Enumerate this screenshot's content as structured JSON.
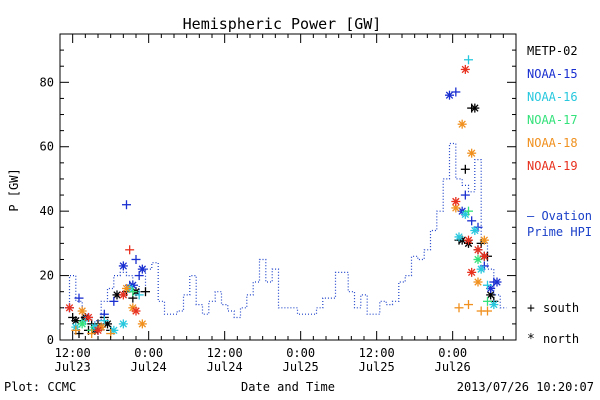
{
  "chart_data": {
    "type": "line",
    "title": "Hemispheric Power [GW]",
    "xlabel": "Date and Time",
    "ylabel": "P [GW]",
    "footer_left": "Plot: CCMC",
    "footer_right": "2013/07/26 10:20:07",
    "x_unit": "hours since 2013-07-23 12:00 UT",
    "x_range": [
      0,
      68
    ],
    "ylim": [
      0,
      95
    ],
    "y_ticks": [
      0,
      20,
      40,
      60,
      80
    ],
    "y_minor_step": 5,
    "x_ticks": [
      {
        "x": 0,
        "time": "12:00",
        "date": "Jul23"
      },
      {
        "x": 12,
        "time": "0:00",
        "date": "Jul24"
      },
      {
        "x": 24,
        "time": "12:00",
        "date": "Jul24"
      },
      {
        "x": 36,
        "time": "0:00",
        "date": "Jul25"
      },
      {
        "x": 48,
        "time": "12:00",
        "date": "Jul25"
      },
      {
        "x": 60,
        "time": "0:00",
        "date": "Jul26"
      }
    ],
    "x_minor_step": 2,
    "grid": false,
    "legend": [
      {
        "name": "METP-02",
        "color": "#000000"
      },
      {
        "name": "NOAA-15",
        "color": "#1a2fd0"
      },
      {
        "name": "NOAA-16",
        "color": "#27c8de"
      },
      {
        "name": "NOAA-17",
        "color": "#33e27a"
      },
      {
        "name": "NOAA-18",
        "color": "#f0901e"
      },
      {
        "name": "NOAA-19",
        "color": "#e8301e"
      }
    ],
    "legend_placement": "right",
    "ovation_label": [
      "— Ovation",
      "Prime HPI"
    ],
    "ovation_color": "#1a3fc8",
    "marker_key": [
      {
        "symbol": "+",
        "label": "south"
      },
      {
        "symbol": "*",
        "label": "north"
      }
    ],
    "ovation": [
      [
        -1.5,
        10
      ],
      [
        -0.5,
        20
      ],
      [
        0.5,
        12
      ],
      [
        1.5,
        8
      ],
      [
        2.5,
        4
      ],
      [
        3.5,
        6
      ],
      [
        4.5,
        12
      ],
      [
        5.5,
        16
      ],
      [
        6.5,
        20
      ],
      [
        7.5,
        21
      ],
      [
        8.5,
        20
      ],
      [
        9.5,
        17
      ],
      [
        10.5,
        15
      ],
      [
        11.5,
        22
      ],
      [
        12.5,
        24
      ],
      [
        13.5,
        12
      ],
      [
        14.5,
        8
      ],
      [
        16.5,
        9
      ],
      [
        17.5,
        14
      ],
      [
        18.5,
        20
      ],
      [
        19.5,
        11
      ],
      [
        20.5,
        8
      ],
      [
        21.5,
        12
      ],
      [
        22.5,
        15
      ],
      [
        23.5,
        11
      ],
      [
        24.5,
        9
      ],
      [
        25.5,
        7
      ],
      [
        26.5,
        10
      ],
      [
        27.5,
        14
      ],
      [
        28.5,
        18
      ],
      [
        29.5,
        25
      ],
      [
        30.5,
        18
      ],
      [
        31.5,
        22
      ],
      [
        32.5,
        10
      ],
      [
        35.5,
        8
      ],
      [
        38.5,
        10
      ],
      [
        39.5,
        13
      ],
      [
        41.5,
        21
      ],
      [
        43.5,
        15
      ],
      [
        44.5,
        10
      ],
      [
        45.5,
        14
      ],
      [
        46.5,
        8
      ],
      [
        48.5,
        12
      ],
      [
        49.5,
        11
      ],
      [
        50.5,
        12
      ],
      [
        51.5,
        18
      ],
      [
        52.5,
        20
      ],
      [
        53.5,
        26
      ],
      [
        54.5,
        25
      ],
      [
        55.5,
        28
      ],
      [
        56.5,
        34
      ],
      [
        57.5,
        40
      ],
      [
        58.5,
        50
      ],
      [
        59.5,
        61
      ],
      [
        60.5,
        50
      ],
      [
        61.5,
        48
      ],
      [
        62.5,
        46
      ],
      [
        63.5,
        56
      ],
      [
        64.5,
        30
      ],
      [
        65.5,
        22
      ],
      [
        66.5,
        14
      ],
      [
        67.5,
        10
      ]
    ],
    "series": [
      {
        "name": "METP-02",
        "points": [
          {
            "x": 0.0,
            "y": 7,
            "m": "+"
          },
          {
            "x": 0.5,
            "y": 6,
            "m": "*"
          },
          {
            "x": 1.0,
            "y": 2,
            "m": "+"
          },
          {
            "x": 1.5,
            "y": 6,
            "m": "+"
          },
          {
            "x": 2.0,
            "y": 7,
            "m": "*"
          },
          {
            "x": 2.5,
            "y": 3,
            "m": "+"
          },
          {
            "x": 3.0,
            "y": 5,
            "m": "+"
          },
          {
            "x": 3.5,
            "y": 3,
            "m": "*"
          },
          {
            "x": 4.0,
            "y": 5,
            "m": "+"
          },
          {
            "x": 4.5,
            "y": 4,
            "m": "*"
          },
          {
            "x": 5.0,
            "y": 7,
            "m": "+"
          },
          {
            "x": 5.5,
            "y": 5,
            "m": "*"
          },
          {
            "x": 6.0,
            "y": 3,
            "m": "+"
          },
          {
            "x": 7.0,
            "y": 14,
            "m": "*"
          },
          {
            "x": 8.5,
            "y": 15,
            "m": "+"
          },
          {
            "x": 9.5,
            "y": 13,
            "m": "+"
          },
          {
            "x": 10.0,
            "y": 15,
            "m": "*"
          },
          {
            "x": 11.5,
            "y": 15,
            "m": "+"
          },
          {
            "x": 61.0,
            "y": 31,
            "m": "+"
          },
          {
            "x": 61.5,
            "y": 31,
            "m": "*"
          },
          {
            "x": 62.0,
            "y": 53,
            "m": "+"
          },
          {
            "x": 62.5,
            "y": 30,
            "m": "*"
          },
          {
            "x": 63.0,
            "y": 72,
            "m": "+"
          },
          {
            "x": 63.5,
            "y": 72,
            "m": "*"
          },
          {
            "x": 64.0,
            "y": 28,
            "m": "+"
          },
          {
            "x": 64.5,
            "y": 30,
            "m": "+"
          },
          {
            "x": 65.0,
            "y": 26,
            "m": "*"
          },
          {
            "x": 65.5,
            "y": 26,
            "m": "+"
          },
          {
            "x": 66.0,
            "y": 14,
            "m": "*"
          },
          {
            "x": 66.5,
            "y": 12,
            "m": "+"
          }
        ]
      },
      {
        "name": "NOAA-15",
        "points": [
          {
            "x": -0.5,
            "y": 10,
            "m": "+"
          },
          {
            "x": 1.0,
            "y": 13,
            "m": "+"
          },
          {
            "x": 2.5,
            "y": 7,
            "m": "+"
          },
          {
            "x": 4.0,
            "y": 3,
            "m": "+"
          },
          {
            "x": 5.0,
            "y": 8,
            "m": "+"
          },
          {
            "x": 6.5,
            "y": 12,
            "m": "+"
          },
          {
            "x": 8.0,
            "y": 23,
            "m": "*"
          },
          {
            "x": 8.5,
            "y": 42,
            "m": "+"
          },
          {
            "x": 9.0,
            "y": 17,
            "m": "+"
          },
          {
            "x": 9.5,
            "y": 17,
            "m": "*"
          },
          {
            "x": 10.0,
            "y": 25,
            "m": "+"
          },
          {
            "x": 10.5,
            "y": 20,
            "m": "+"
          },
          {
            "x": 11.0,
            "y": 22,
            "m": "*"
          },
          {
            "x": 59.5,
            "y": 76,
            "m": "*"
          },
          {
            "x": 60.5,
            "y": 77,
            "m": "+"
          },
          {
            "x": 61.5,
            "y": 40,
            "m": "*"
          },
          {
            "x": 62.0,
            "y": 45,
            "m": "+"
          },
          {
            "x": 63.0,
            "y": 37,
            "m": "+"
          },
          {
            "x": 64.0,
            "y": 35,
            "m": "+"
          },
          {
            "x": 65.0,
            "y": 23,
            "m": "+"
          },
          {
            "x": 66.0,
            "y": 16,
            "m": "*"
          },
          {
            "x": 66.5,
            "y": 18,
            "m": "+"
          },
          {
            "x": 67.0,
            "y": 18,
            "m": "*"
          }
        ]
      },
      {
        "name": "NOAA-16",
        "points": [
          {
            "x": 0.5,
            "y": 4,
            "m": "*"
          },
          {
            "x": 2.0,
            "y": 6,
            "m": "+"
          },
          {
            "x": 3.5,
            "y": 4,
            "m": "*"
          },
          {
            "x": 5.0,
            "y": 6,
            "m": "+"
          },
          {
            "x": 6.5,
            "y": 3,
            "m": "*"
          },
          {
            "x": 8.0,
            "y": 5,
            "m": "*"
          },
          {
            "x": 9.0,
            "y": 16,
            "m": "*"
          },
          {
            "x": 10.5,
            "y": 14,
            "m": "+"
          },
          {
            "x": 61.0,
            "y": 32,
            "m": "*"
          },
          {
            "x": 62.0,
            "y": 39,
            "m": "*"
          },
          {
            "x": 62.5,
            "y": 87,
            "m": "+"
          },
          {
            "x": 63.5,
            "y": 34,
            "m": "*"
          },
          {
            "x": 64.5,
            "y": 22,
            "m": "*"
          },
          {
            "x": 65.5,
            "y": 17,
            "m": "+"
          },
          {
            "x": 66.5,
            "y": 11,
            "m": "*"
          }
        ]
      },
      {
        "name": "NOAA-17",
        "points": [
          {
            "x": 1.5,
            "y": 5,
            "m": "*"
          },
          {
            "x": 3.0,
            "y": 3,
            "m": "+"
          },
          {
            "x": 9.5,
            "y": 15,
            "m": "+"
          },
          {
            "x": 62.5,
            "y": 40,
            "m": "+"
          },
          {
            "x": 64.0,
            "y": 25,
            "m": "*"
          },
          {
            "x": 65.5,
            "y": 12,
            "m": "+"
          }
        ]
      },
      {
        "name": "NOAA-18",
        "points": [
          {
            "x": 0.5,
            "y": 3,
            "m": "+"
          },
          {
            "x": 1.5,
            "y": 9,
            "m": "*"
          },
          {
            "x": 3.0,
            "y": 2,
            "m": "+"
          },
          {
            "x": 4.5,
            "y": 4,
            "m": "*"
          },
          {
            "x": 6.0,
            "y": 2,
            "m": "+"
          },
          {
            "x": 8.5,
            "y": 16,
            "m": "*"
          },
          {
            "x": 9.5,
            "y": 10,
            "m": "*"
          },
          {
            "x": 11.0,
            "y": 5,
            "m": "*"
          },
          {
            "x": 60.5,
            "y": 41,
            "m": "*"
          },
          {
            "x": 61.0,
            "y": 10,
            "m": "+"
          },
          {
            "x": 61.5,
            "y": 67,
            "m": "*"
          },
          {
            "x": 62.5,
            "y": 11,
            "m": "+"
          },
          {
            "x": 63.0,
            "y": 58,
            "m": "*"
          },
          {
            "x": 64.0,
            "y": 18,
            "m": "*"
          },
          {
            "x": 64.5,
            "y": 9,
            "m": "+"
          },
          {
            "x": 65.0,
            "y": 31,
            "m": "*"
          },
          {
            "x": 65.5,
            "y": 9,
            "m": "+"
          }
        ]
      },
      {
        "name": "NOAA-19",
        "points": [
          {
            "x": -0.5,
            "y": 10,
            "m": "*"
          },
          {
            "x": 2.5,
            "y": 7,
            "m": "*"
          },
          {
            "x": 4.0,
            "y": 3,
            "m": "*"
          },
          {
            "x": 8.0,
            "y": 14,
            "m": "*"
          },
          {
            "x": 9.0,
            "y": 28,
            "m": "+"
          },
          {
            "x": 10.0,
            "y": 9,
            "m": "*"
          },
          {
            "x": 60.5,
            "y": 43,
            "m": "*"
          },
          {
            "x": 62.0,
            "y": 84,
            "m": "*"
          },
          {
            "x": 62.5,
            "y": 31,
            "m": "*"
          },
          {
            "x": 63.0,
            "y": 21,
            "m": "*"
          },
          {
            "x": 64.0,
            "y": 28,
            "m": "*"
          },
          {
            "x": 65.0,
            "y": 26,
            "m": "*"
          }
        ]
      }
    ]
  }
}
